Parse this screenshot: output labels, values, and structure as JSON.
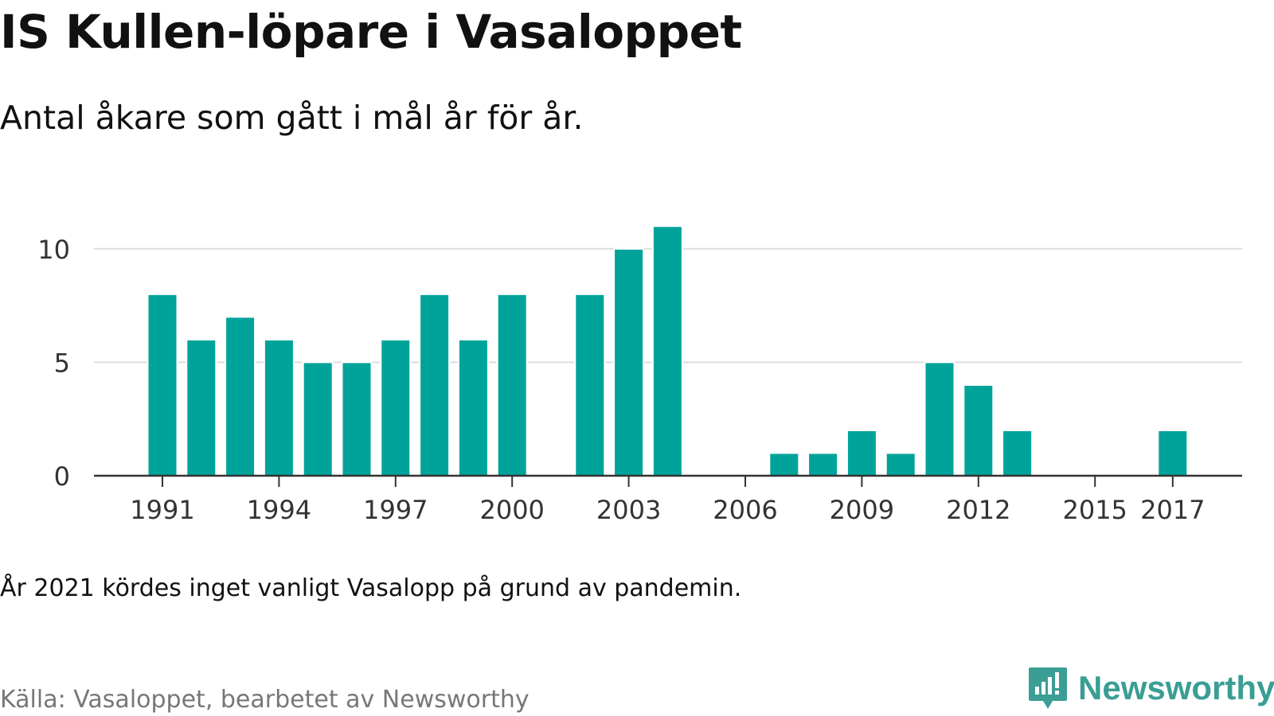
{
  "title": "IS Kullen-löpare i Vasaloppet",
  "subtitle": "Antal åkare som gått i mål år för år.",
  "note": "År 2021 kördes inget vanligt Vasalopp på grund av pandemin.",
  "source": "Källa: Vasaloppet, bearbetet av Newsworthy",
  "brand": "Newsworthy",
  "colors": {
    "bar": "#00a39a",
    "grid": "#dddddd",
    "axis": "#333333",
    "brand": "#3a9e94"
  },
  "chart_data": {
    "type": "bar",
    "categories": [
      "1991",
      "1992",
      "1993",
      "1994",
      "1995",
      "1996",
      "1997",
      "1998",
      "1999",
      "2000",
      "2001",
      "2002",
      "2003",
      "2004",
      "2005",
      "2006",
      "2007",
      "2008",
      "2009",
      "2010",
      "2011",
      "2012",
      "2013",
      "2014",
      "2015",
      "2016",
      "2017"
    ],
    "values": [
      8,
      6,
      7,
      6,
      5,
      5,
      6,
      8,
      6,
      8,
      0,
      8,
      10,
      11,
      0,
      0,
      1,
      1,
      2,
      1,
      5,
      4,
      2,
      0,
      0,
      0,
      2
    ],
    "xticks": [
      "1991",
      "1994",
      "1997",
      "2000",
      "2003",
      "2006",
      "2009",
      "2012",
      "2015",
      "2017"
    ],
    "yticks": [
      0,
      5,
      10
    ],
    "ylim": [
      0,
      11.5
    ],
    "grid": true,
    "legend": "none"
  }
}
